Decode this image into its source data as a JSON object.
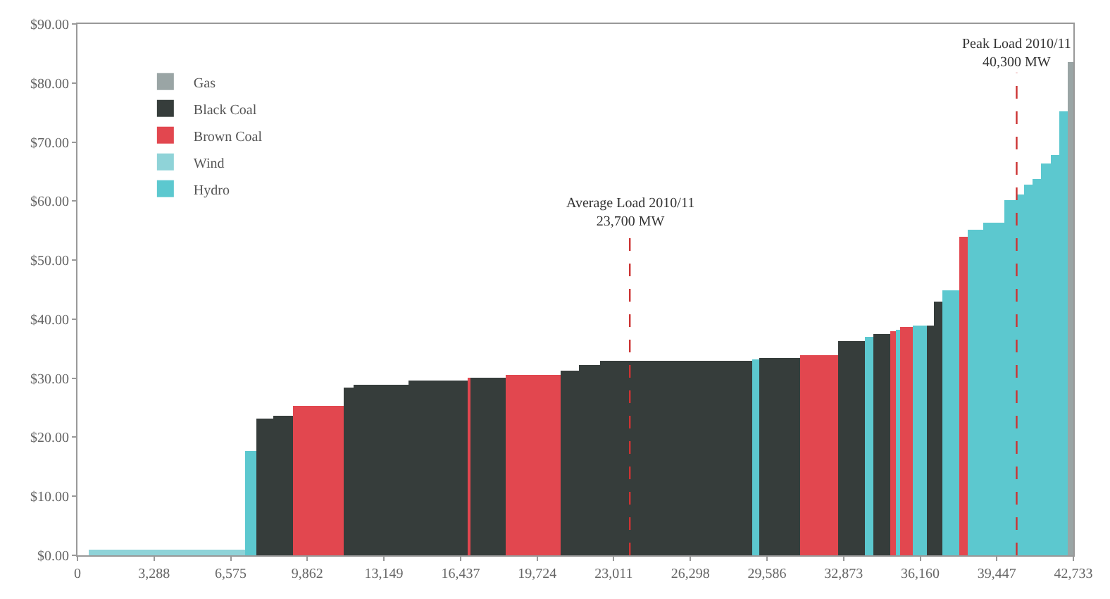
{
  "chart_data": {
    "type": "histogram",
    "bins": [
      500,
      7170,
      7705,
      8416,
      9246,
      11439,
      11854,
      14225,
      16773,
      16892,
      18374,
      20745,
      21515,
      22404,
      28924,
      29279,
      30998,
      32658,
      33784,
      34140,
      34851,
      35147,
      35325,
      35858,
      36451,
      36747,
      37103,
      37814,
      38170,
      38881,
      39770,
      40304,
      40600,
      40955,
      41370,
      41785,
      42140,
      42496,
      42733
    ],
    "series": [
      {
        "name": "Gas",
        "color": "#9aa5a5",
        "values": [
          null,
          null,
          null,
          null,
          null,
          null,
          null,
          null,
          null,
          null,
          null,
          null,
          null,
          null,
          null,
          null,
          null,
          null,
          null,
          null,
          null,
          null,
          null,
          null,
          null,
          null,
          null,
          null,
          null,
          null,
          null,
          null,
          null,
          null,
          null,
          null,
          null,
          83.5
        ]
      },
      {
        "name": "Black Coal",
        "color": "#363d3b",
        "values": [
          null,
          null,
          23.2,
          23.7,
          null,
          28.3,
          28.9,
          29.7,
          null,
          30.1,
          null,
          31.2,
          32.2,
          33.0,
          null,
          33.5,
          null,
          36.4,
          null,
          37.5,
          null,
          null,
          null,
          null,
          39.0,
          43.0,
          null,
          null,
          null,
          null,
          null,
          null,
          null,
          null,
          null,
          null,
          null,
          null
        ]
      },
      {
        "name": "Brown Coal",
        "color": "#e2474f",
        "values": [
          null,
          null,
          null,
          null,
          25.2,
          null,
          null,
          null,
          30.0,
          null,
          30.5,
          null,
          null,
          null,
          null,
          null,
          33.8,
          null,
          null,
          null,
          38.0,
          null,
          38.7,
          null,
          null,
          null,
          null,
          53.9,
          null,
          null,
          null,
          null,
          null,
          null,
          null,
          null,
          null,
          null
        ]
      },
      {
        "name": "Wind",
        "color": "#8fd3d8",
        "values": [
          1.0,
          null,
          null,
          null,
          null,
          null,
          null,
          null,
          null,
          null,
          null,
          null,
          null,
          null,
          null,
          null,
          null,
          null,
          null,
          null,
          null,
          null,
          null,
          null,
          null,
          null,
          null,
          null,
          null,
          null,
          null,
          null,
          null,
          null,
          null,
          null,
          null,
          null
        ]
      },
      {
        "name": "Hydro",
        "color": "#5cc8cf",
        "values": [
          null,
          17.7,
          null,
          null,
          null,
          null,
          null,
          null,
          null,
          null,
          null,
          null,
          null,
          null,
          33.3,
          null,
          null,
          null,
          37.1,
          null,
          null,
          38.3,
          null,
          39.0,
          null,
          null,
          44.9,
          null,
          55.2,
          56.3,
          60.1,
          61.0,
          62.8,
          63.8,
          66.3,
          67.9,
          75.3,
          null
        ]
      }
    ],
    "xlim": [
      0,
      42733
    ],
    "xticks": [
      0,
      {
        "value": 3288,
        "label": "3,288"
      },
      {
        "value": 6575,
        "label": "6,575"
      },
      {
        "value": 9862,
        "label": "9,862"
      },
      {
        "value": 13149,
        "label": "13,149"
      },
      {
        "value": 16437,
        "label": "16,437"
      },
      {
        "value": 19724,
        "label": "19,724"
      },
      {
        "value": 23011,
        "label": "23,011"
      },
      {
        "value": 26298,
        "label": "26,298"
      },
      {
        "value": 29586,
        "label": "29,586"
      },
      {
        "value": 32873,
        "label": "32,873"
      },
      {
        "value": 36160,
        "label": "36,160"
      },
      {
        "value": 39447,
        "label": "39,447"
      },
      {
        "value": 42733,
        "label": "42,733"
      }
    ],
    "ylim": [
      0,
      90
    ],
    "yticks": [
      {
        "value": 0,
        "label": "$0.00"
      },
      {
        "value": 10,
        "label": "$10.00"
      },
      {
        "value": 20,
        "label": "$20.00"
      },
      {
        "value": 30,
        "label": "$30.00"
      },
      {
        "value": 40,
        "label": "$40.00"
      },
      {
        "value": 50,
        "label": "$50.00"
      },
      {
        "value": 60,
        "label": "$60.00"
      },
      {
        "value": 70,
        "label": "$70.00"
      },
      {
        "value": 80,
        "label": "$80.00"
      },
      {
        "value": 90,
        "label": "$90.00"
      }
    ],
    "ref_lines": [
      {
        "axis": "x",
        "value": 23700,
        "label": "Average Load 2010/11\n23,700 MW",
        "color": "#cc3333",
        "line_style": "dashed"
      },
      {
        "axis": "x",
        "value": 40300,
        "label": "Peak Load 2010/11\n40,300 MW",
        "color": "#cc3333",
        "line_style": "dashed"
      }
    ],
    "legend": "top left"
  }
}
